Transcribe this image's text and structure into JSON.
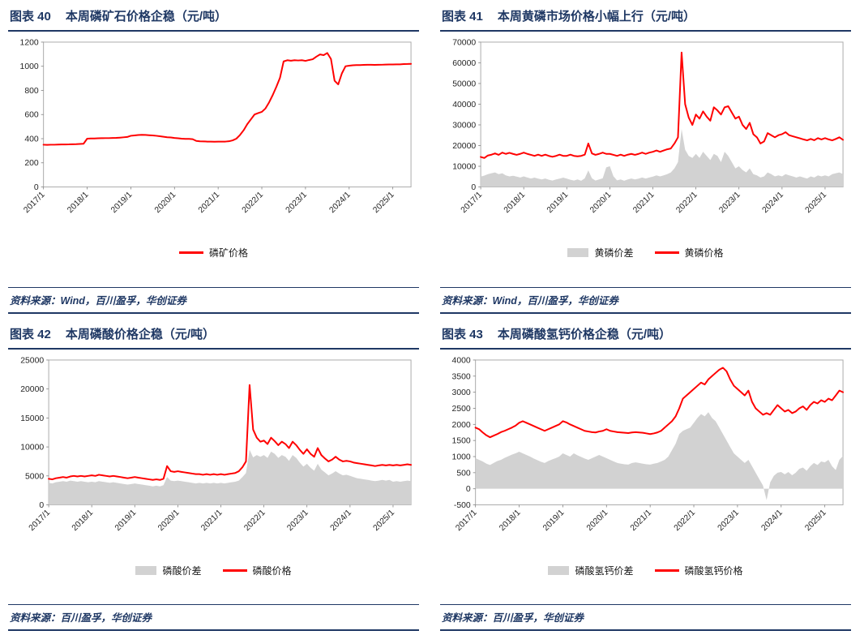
{
  "colors": {
    "navy": "#1F3864",
    "line_red": "#FF0000",
    "area_gray": "#D2D2D2",
    "plot_border": "#ABABAB",
    "tick_text": "#262626"
  },
  "panels": [
    {
      "fig_label": "图表 40",
      "title": "本周磷矿石价格企稳（元/吨）",
      "source": "资料来源：Wind，百川盈孚，华创证券"
    },
    {
      "fig_label": "图表 41",
      "title": "本周黄磷市场价格小幅上行（元/吨）",
      "source": "资料来源：Wind，百川盈孚，华创证券"
    },
    {
      "fig_label": "图表 42",
      "title": "本周磷酸价格企稳（元/吨）",
      "source": "资料来源：百川盈孚，华创证券"
    },
    {
      "fig_label": "图表 43",
      "title": "本周磷酸氢钙价格企稳（元/吨）",
      "source": "资料来源：百川盈孚，华创证券"
    }
  ],
  "chart_data": [
    {
      "type": "line",
      "title": "本周磷矿石价格企稳（元/吨）",
      "x_note": "monthly values from 2017/1 to 2025/6",
      "x_tick_labels": [
        "2017/1",
        "2018/1",
        "2019/1",
        "2020/1",
        "2021/1",
        "2022/1",
        "2023/1",
        "2024/1",
        "2025/1"
      ],
      "x_tick_every_n": 12,
      "ylim": [
        0,
        1200
      ],
      "ytick_step": 200,
      "grid": false,
      "legend_position": "bottom",
      "series": [
        {
          "name": "磷矿价格",
          "type": "line",
          "color": "#FF0000",
          "values": [
            350,
            349,
            350,
            350,
            351,
            352,
            352,
            353,
            354,
            355,
            356,
            358,
            400,
            401,
            402,
            403,
            404,
            405,
            405,
            406,
            407,
            409,
            411,
            414,
            424,
            427,
            430,
            432,
            431,
            429,
            427,
            424,
            420,
            416,
            412,
            410,
            406,
            403,
            400,
            399,
            398,
            396,
            381,
            378,
            377,
            376,
            376,
            375,
            376,
            376,
            376,
            379,
            386,
            400,
            430,
            470,
            520,
            560,
            600,
            612,
            622,
            650,
            700,
            762,
            830,
            905,
            1040,
            1050,
            1046,
            1050,
            1048,
            1050,
            1045,
            1052,
            1058,
            1080,
            1098,
            1092,
            1110,
            1060,
            880,
            850,
            940,
            1000,
            1005,
            1008,
            1010,
            1010,
            1011,
            1012,
            1012,
            1011,
            1012,
            1013,
            1014,
            1015,
            1015,
            1016,
            1016,
            1018,
            1019,
            1020
          ]
        }
      ]
    },
    {
      "type": "area+line",
      "title": "本周黄磷市场价格小幅上行（元/吨）",
      "x_note": "monthly values from 2017/1 to 2025/6",
      "x_tick_labels": [
        "2017/1",
        "2018/1",
        "2019/1",
        "2020/1",
        "2021/1",
        "2022/1",
        "2023/1",
        "2024/1",
        "2025/1"
      ],
      "x_tick_every_n": 12,
      "ylim": [
        0,
        70000
      ],
      "ytick_step": 10000,
      "grid": false,
      "legend_position": "bottom",
      "series": [
        {
          "name": "黄磷价差",
          "type": "area",
          "color": "#D2D2D2",
          "values": [
            5000,
            5500,
            6200,
            6600,
            7000,
            6200,
            6600,
            5600,
            5100,
            5400,
            5000,
            4600,
            5100,
            4600,
            4100,
            4500,
            4000,
            3600,
            4100,
            3500,
            3100,
            3600,
            4000,
            4500,
            4000,
            3500,
            3100,
            3600,
            3000,
            4200,
            8000,
            4200,
            3100,
            3600,
            4200,
            9500,
            10000,
            5200,
            3200,
            3600,
            3000,
            3600,
            4100,
            3600,
            4000,
            4600,
            4100,
            4600,
            5000,
            5600,
            5100,
            5600,
            6200,
            7000,
            9000,
            12000,
            28000,
            18000,
            15000,
            14000,
            16000,
            14000,
            17000,
            15000,
            13000,
            16000,
            15000,
            12000,
            17000,
            15000,
            12000,
            9000,
            10000,
            8200,
            7000,
            9000,
            6200,
            5600,
            4600,
            5100,
            7000,
            6200,
            5100,
            5600,
            5100,
            6200,
            5600,
            5100,
            4600,
            5100,
            4600,
            4100,
            5100,
            4600,
            5600,
            5100,
            5600,
            5100,
            6200,
            6600,
            7000,
            6200
          ]
        },
        {
          "name": "黄磷价格",
          "type": "line",
          "color": "#FF0000",
          "values": [
            14500,
            14000,
            15200,
            15600,
            16200,
            15500,
            16600,
            16000,
            16500,
            16000,
            15500,
            16000,
            16600,
            16000,
            15500,
            15000,
            15600,
            15000,
            15600,
            15000,
            14600,
            15000,
            15600,
            15000,
            15000,
            15600,
            15000,
            14800,
            15000,
            15600,
            21000,
            16200,
            15500,
            16000,
            16600,
            16000,
            16000,
            15500,
            15000,
            15600,
            15000,
            15600,
            16000,
            15500,
            16000,
            16600,
            16000,
            16600,
            17000,
            17600,
            17000,
            17600,
            18200,
            18600,
            21000,
            24000,
            65000,
            40000,
            33500,
            30000,
            35000,
            33000,
            36500,
            34000,
            32000,
            38500,
            37000,
            35000,
            38500,
            39000,
            36000,
            33000,
            34000,
            30000,
            28000,
            31000,
            25500,
            24000,
            21000,
            22000,
            26000,
            25000,
            24000,
            25000,
            25500,
            26500,
            25000,
            24500,
            24000,
            23500,
            23000,
            22500,
            23200,
            22600,
            23600,
            23000,
            23600,
            23000,
            22500,
            23200,
            24000,
            22800
          ]
        }
      ]
    },
    {
      "type": "area+line",
      "title": "本周磷酸价格企稳（元/吨）",
      "x_note": "monthly values from 2017/1 to 2025/6",
      "x_tick_labels": [
        "2017/1",
        "2018/1",
        "2019/1",
        "2020/1",
        "2021/1",
        "2022/1",
        "2023/1",
        "2024/1",
        "2025/1"
      ],
      "x_tick_every_n": 12,
      "ylim": [
        0,
        25000
      ],
      "ytick_step": 5000,
      "grid": false,
      "legend_position": "bottom",
      "series": [
        {
          "name": "磷酸价差",
          "type": "area",
          "color": "#D2D2D2",
          "values": [
            3800,
            3700,
            3900,
            4000,
            4100,
            4000,
            4200,
            4100,
            4000,
            4100,
            4000,
            3900,
            4000,
            3900,
            4100,
            4000,
            3900,
            3800,
            3900,
            3800,
            3700,
            3600,
            3500,
            3600,
            3700,
            3600,
            3500,
            3400,
            3300,
            3200,
            3300,
            3200,
            3400,
            4800,
            4200,
            4100,
            4200,
            4100,
            4000,
            3900,
            3800,
            3700,
            3800,
            3700,
            3800,
            3700,
            3800,
            3700,
            3800,
            3700,
            3800,
            3900,
            4000,
            4200,
            4800,
            5500,
            9500,
            8200,
            8600,
            8300,
            8600,
            8100,
            9200,
            8800,
            8100,
            8600,
            8300,
            7600,
            8600,
            8100,
            7300,
            6600,
            7100,
            6400,
            5900,
            7100,
            6100,
            5600,
            5100,
            5400,
            5800,
            5400,
            5100,
            5200,
            5000,
            4800,
            4600,
            4500,
            4400,
            4300,
            4200,
            4100,
            4200,
            4300,
            4200,
            4300,
            4000,
            4100,
            4000,
            4100,
            4200,
            4100
          ]
        },
        {
          "name": "磷酸价格",
          "type": "line",
          "color": "#FF0000",
          "values": [
            4500,
            4400,
            4600,
            4700,
            4800,
            4700,
            4900,
            5000,
            4900,
            5000,
            4900,
            5000,
            5100,
            5000,
            5200,
            5100,
            5000,
            4900,
            5000,
            4900,
            4800,
            4700,
            4600,
            4700,
            4800,
            4700,
            4600,
            4500,
            4400,
            4300,
            4400,
            4300,
            4500,
            6700,
            5800,
            5700,
            5800,
            5700,
            5600,
            5500,
            5400,
            5300,
            5300,
            5200,
            5300,
            5200,
            5300,
            5200,
            5300,
            5200,
            5300,
            5400,
            5500,
            5800,
            6500,
            7500,
            20700,
            13000,
            11600,
            10900,
            11100,
            10500,
            11600,
            11000,
            10300,
            10900,
            10500,
            9800,
            10900,
            10300,
            9500,
            8800,
            9600,
            8800,
            8300,
            9800,
            8600,
            8000,
            7500,
            7800,
            8300,
            7800,
            7500,
            7600,
            7500,
            7300,
            7200,
            7100,
            7000,
            6900,
            6800,
            6700,
            6800,
            6900,
            6800,
            6900,
            6800,
            6900,
            6800,
            6900,
            7000,
            6900
          ]
        }
      ]
    },
    {
      "type": "area+line",
      "title": "本周磷酸氢钙价格企稳（元/吨）",
      "x_note": "monthly values from 2017/1 to 2025/6",
      "x_tick_labels": [
        "2017/1",
        "2018/1",
        "2019/1",
        "2020/1",
        "2021/1",
        "2022/1",
        "2023/1",
        "2024/1",
        "2025/1"
      ],
      "x_tick_every_n": 12,
      "ylim": [
        -500,
        4000
      ],
      "ytick_step": 500,
      "grid": false,
      "legend_position": "bottom",
      "series": [
        {
          "name": "磷酸氢钙价差",
          "type": "area",
          "color": "#D2D2D2",
          "values": [
            950,
            900,
            850,
            780,
            740,
            800,
            860,
            900,
            960,
            1010,
            1060,
            1100,
            1150,
            1100,
            1050,
            1000,
            940,
            890,
            840,
            800,
            860,
            910,
            950,
            1000,
            1100,
            1050,
            1000,
            1100,
            1040,
            990,
            940,
            900,
            950,
            1000,
            1050,
            1000,
            950,
            900,
            850,
            800,
            780,
            760,
            750,
            800,
            820,
            800,
            780,
            760,
            750,
            780,
            800,
            850,
            900,
            1000,
            1200,
            1400,
            1700,
            1800,
            1850,
            1900,
            2050,
            2200,
            2320,
            2250,
            2380,
            2200,
            2100,
            1900,
            1700,
            1500,
            1300,
            1100,
            1000,
            900,
            800,
            900,
            700,
            500,
            300,
            100,
            -350,
            200,
            400,
            500,
            520,
            450,
            520,
            420,
            500,
            620,
            660,
            560,
            700,
            800,
            740,
            850,
            820,
            900,
            700,
            580,
            900,
            1020
          ]
        },
        {
          "name": "磷酸氢钙价格",
          "type": "line",
          "color": "#FF0000",
          "values": [
            1900,
            1850,
            1750,
            1660,
            1600,
            1650,
            1700,
            1760,
            1800,
            1850,
            1900,
            1960,
            2050,
            2100,
            2050,
            2000,
            1950,
            1900,
            1850,
            1800,
            1850,
            1900,
            1950,
            2000,
            2100,
            2060,
            2000,
            1950,
            1900,
            1850,
            1800,
            1780,
            1760,
            1750,
            1780,
            1800,
            1850,
            1800,
            1780,
            1760,
            1750,
            1740,
            1730,
            1750,
            1760,
            1750,
            1740,
            1720,
            1700,
            1720,
            1750,
            1800,
            1900,
            2000,
            2100,
            2250,
            2500,
            2800,
            2900,
            3000,
            3100,
            3200,
            3300,
            3240,
            3400,
            3500,
            3600,
            3700,
            3760,
            3650,
            3400,
            3200,
            3100,
            3000,
            2900,
            3050,
            2700,
            2500,
            2400,
            2300,
            2350,
            2300,
            2450,
            2600,
            2500,
            2400,
            2450,
            2350,
            2400,
            2500,
            2560,
            2450,
            2600,
            2700,
            2650,
            2750,
            2700,
            2800,
            2750,
            2900,
            3050,
            3000
          ]
        }
      ]
    }
  ]
}
